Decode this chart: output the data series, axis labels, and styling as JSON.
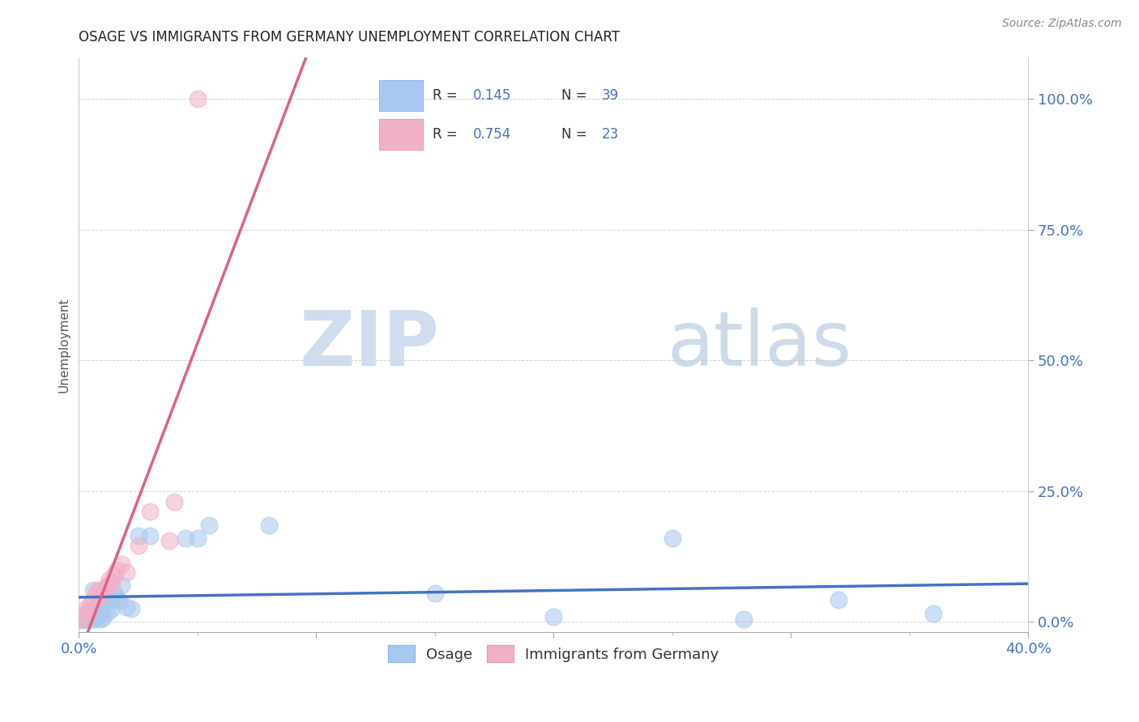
{
  "title": "OSAGE VS IMMIGRANTS FROM GERMANY UNEMPLOYMENT CORRELATION CHART",
  "source": "Source: ZipAtlas.com",
  "ylabel": "Unemployment",
  "ytick_labels": [
    "0.0%",
    "25.0%",
    "50.0%",
    "75.0%",
    "100.0%"
  ],
  "ytick_values": [
    0.0,
    0.25,
    0.5,
    0.75,
    1.0
  ],
  "xlim": [
    0.0,
    0.4
  ],
  "ylim": [
    -0.02,
    1.08
  ],
  "osage_color": "#a8c8f0",
  "germany_color": "#f0b0c8",
  "trend_osage_color": "#4472c4",
  "trend_germany_color": "#e06080",
  "watermark_zip": "ZIP",
  "watermark_atlas": "atlas",
  "osage_x": [
    0.001,
    0.002,
    0.002,
    0.003,
    0.003,
    0.004,
    0.005,
    0.005,
    0.006,
    0.007,
    0.007,
    0.008,
    0.008,
    0.009,
    0.01,
    0.01,
    0.011,
    0.012,
    0.013,
    0.014,
    0.015,
    0.016,
    0.017,
    0.018,
    0.02,
    0.022,
    0.025,
    0.03,
    0.045,
    0.05,
    0.055,
    0.08,
    0.15,
    0.2,
    0.25,
    0.28,
    0.32,
    0.36,
    0.006
  ],
  "osage_y": [
    0.003,
    0.005,
    0.01,
    0.008,
    0.015,
    0.003,
    0.01,
    0.02,
    0.005,
    0.008,
    0.03,
    0.012,
    0.025,
    0.005,
    0.008,
    0.03,
    0.05,
    0.018,
    0.04,
    0.025,
    0.055,
    0.045,
    0.04,
    0.07,
    0.028,
    0.025,
    0.165,
    0.165,
    0.16,
    0.16,
    0.185,
    0.185,
    0.055,
    0.01,
    0.16,
    0.005,
    0.042,
    0.015,
    0.06
  ],
  "germany_x": [
    0.001,
    0.002,
    0.003,
    0.004,
    0.005,
    0.006,
    0.007,
    0.008,
    0.009,
    0.01,
    0.011,
    0.012,
    0.013,
    0.014,
    0.015,
    0.016,
    0.018,
    0.02,
    0.025,
    0.03,
    0.038,
    0.04,
    0.05
  ],
  "germany_y": [
    0.005,
    0.01,
    0.025,
    0.02,
    0.035,
    0.04,
    0.055,
    0.06,
    0.05,
    0.055,
    0.065,
    0.07,
    0.08,
    0.075,
    0.09,
    0.1,
    0.11,
    0.095,
    0.145,
    0.21,
    0.155,
    0.23,
    1.0
  ],
  "r_osage": "0.145",
  "n_osage": "39",
  "r_germany": "0.754",
  "n_germany": "23",
  "legend_label_osage": "Osage",
  "legend_label_germany": "Immigrants from Germany",
  "title_color": "#222222",
  "axis_color": "#4472c4",
  "tick_color": "#aaaaaa",
  "grid_color": "#cccccc",
  "source_color": "#888888"
}
